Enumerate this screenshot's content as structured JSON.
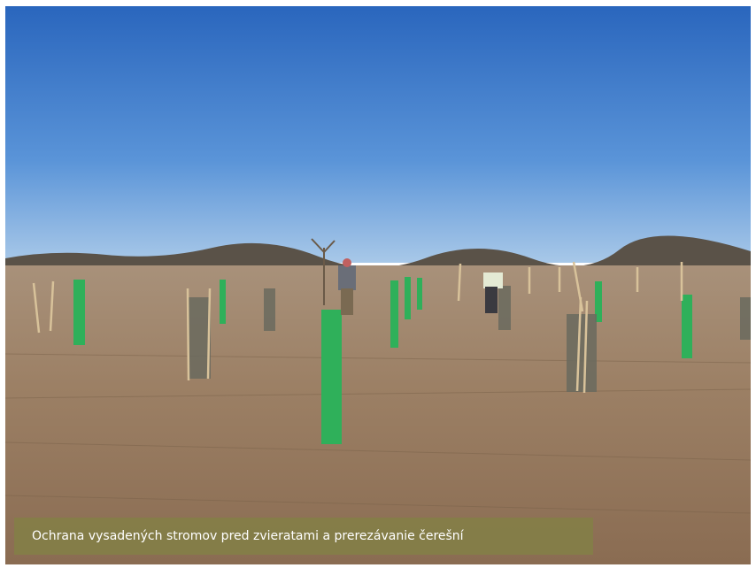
{
  "caption": "Ochrana vysadených stromov pred zvieratami a prerezávanie čerešní"
}
